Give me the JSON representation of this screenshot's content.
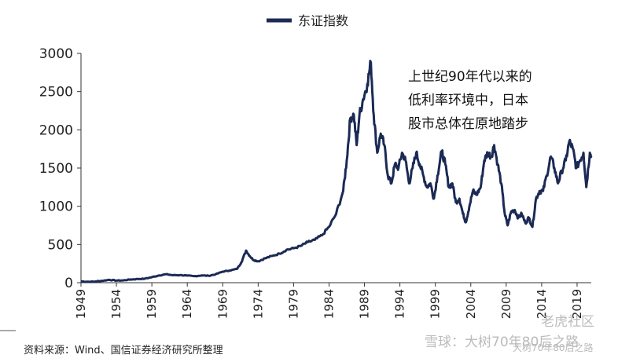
{
  "chart_data": {
    "type": "line",
    "title": "",
    "xlabel": "",
    "ylabel": "",
    "ylim": [
      0,
      3000
    ],
    "xlim": [
      1949,
      2021
    ],
    "grid": false,
    "legend_position": "top-center",
    "y_ticks": [
      "0",
      "500",
      "1000",
      "1500",
      "2000",
      "2500",
      "3000"
    ],
    "x_ticks": [
      "1949",
      "1954",
      "1959",
      "1964",
      "1969",
      "1974",
      "1979",
      "1984",
      "1989",
      "1994",
      "1999",
      "2004",
      "2009",
      "2014",
      "2019"
    ],
    "series": [
      {
        "name": "东证指数",
        "color": "#1b2a55",
        "points": [
          [
            1949.0,
            18
          ],
          [
            1950.0,
            12
          ],
          [
            1951.0,
            15
          ],
          [
            1952.0,
            25
          ],
          [
            1953.0,
            38
          ],
          [
            1954.0,
            28
          ],
          [
            1955.0,
            30
          ],
          [
            1956.0,
            42
          ],
          [
            1957.0,
            48
          ],
          [
            1958.0,
            52
          ],
          [
            1959.0,
            72
          ],
          [
            1960.0,
            95
          ],
          [
            1961.0,
            110
          ],
          [
            1962.0,
            98
          ],
          [
            1963.0,
            100
          ],
          [
            1964.0,
            92
          ],
          [
            1965.0,
            85
          ],
          [
            1966.0,
            95
          ],
          [
            1967.0,
            90
          ],
          [
            1968.0,
            110
          ],
          [
            1969.0,
            145
          ],
          [
            1970.0,
            160
          ],
          [
            1971.0,
            180
          ],
          [
            1971.6,
            260
          ],
          [
            1972.3,
            420
          ],
          [
            1972.8,
            350
          ],
          [
            1973.3,
            300
          ],
          [
            1974.0,
            280
          ],
          [
            1975.0,
            320
          ],
          [
            1976.0,
            350
          ],
          [
            1977.0,
            380
          ],
          [
            1978.0,
            430
          ],
          [
            1979.0,
            450
          ],
          [
            1980.0,
            480
          ],
          [
            1981.0,
            530
          ],
          [
            1982.0,
            560
          ],
          [
            1983.0,
            620
          ],
          [
            1984.0,
            730
          ],
          [
            1985.0,
            900
          ],
          [
            1986.0,
            1200
          ],
          [
            1986.5,
            1600
          ],
          [
            1987.0,
            2150
          ],
          [
            1987.5,
            2200
          ],
          [
            1987.9,
            1800
          ],
          [
            1988.3,
            2200
          ],
          [
            1988.8,
            2400
          ],
          [
            1989.4,
            2600
          ],
          [
            1989.9,
            2880
          ],
          [
            1990.3,
            2200
          ],
          [
            1990.8,
            1700
          ],
          [
            1991.3,
            1950
          ],
          [
            1991.8,
            1800
          ],
          [
            1992.3,
            1400
          ],
          [
            1992.8,
            1300
          ],
          [
            1993.3,
            1550
          ],
          [
            1993.8,
            1500
          ],
          [
            1994.3,
            1700
          ],
          [
            1994.8,
            1600
          ],
          [
            1995.3,
            1300
          ],
          [
            1995.8,
            1500
          ],
          [
            1996.3,
            1700
          ],
          [
            1996.8,
            1550
          ],
          [
            1997.3,
            1400
          ],
          [
            1997.8,
            1250
          ],
          [
            1998.3,
            1300
          ],
          [
            1998.8,
            1100
          ],
          [
            1999.3,
            1400
          ],
          [
            1999.9,
            1720
          ],
          [
            2000.4,
            1550
          ],
          [
            2000.9,
            1250
          ],
          [
            2001.4,
            1300
          ],
          [
            2001.9,
            1050
          ],
          [
            2002.4,
            1100
          ],
          [
            2002.9,
            900
          ],
          [
            2003.3,
            790
          ],
          [
            2003.8,
            1000
          ],
          [
            2004.3,
            1200
          ],
          [
            2004.8,
            1150
          ],
          [
            2005.4,
            1250
          ],
          [
            2005.9,
            1600
          ],
          [
            2006.4,
            1700
          ],
          [
            2006.9,
            1650
          ],
          [
            2007.3,
            1800
          ],
          [
            2007.8,
            1550
          ],
          [
            2008.3,
            1300
          ],
          [
            2008.8,
            900
          ],
          [
            2009.2,
            750
          ],
          [
            2009.7,
            930
          ],
          [
            2010.2,
            950
          ],
          [
            2010.7,
            850
          ],
          [
            2011.2,
            900
          ],
          [
            2011.7,
            780
          ],
          [
            2012.2,
            850
          ],
          [
            2012.7,
            730
          ],
          [
            2013.2,
            1100
          ],
          [
            2013.7,
            1200
          ],
          [
            2014.2,
            1200
          ],
          [
            2014.7,
            1400
          ],
          [
            2015.3,
            1650
          ],
          [
            2015.8,
            1500
          ],
          [
            2016.3,
            1300
          ],
          [
            2016.8,
            1450
          ],
          [
            2017.4,
            1600
          ],
          [
            2017.9,
            1850
          ],
          [
            2018.4,
            1750
          ],
          [
            2018.9,
            1500
          ],
          [
            2019.4,
            1600
          ],
          [
            2019.9,
            1700
          ],
          [
            2020.3,
            1250
          ],
          [
            2020.8,
            1700
          ],
          [
            2021.0,
            1640
          ]
        ]
      }
    ],
    "annotations": [
      "上世纪90年代以来的",
      "低利率环境中，日本",
      "股市总体在原地踏步"
    ]
  },
  "source_note": "资料来源：Wind、国信证券经济研究所整理",
  "watermarks": [
    "雪球：大树70年80后之路",
    "老虎社区",
    "大树70年80后之路"
  ]
}
